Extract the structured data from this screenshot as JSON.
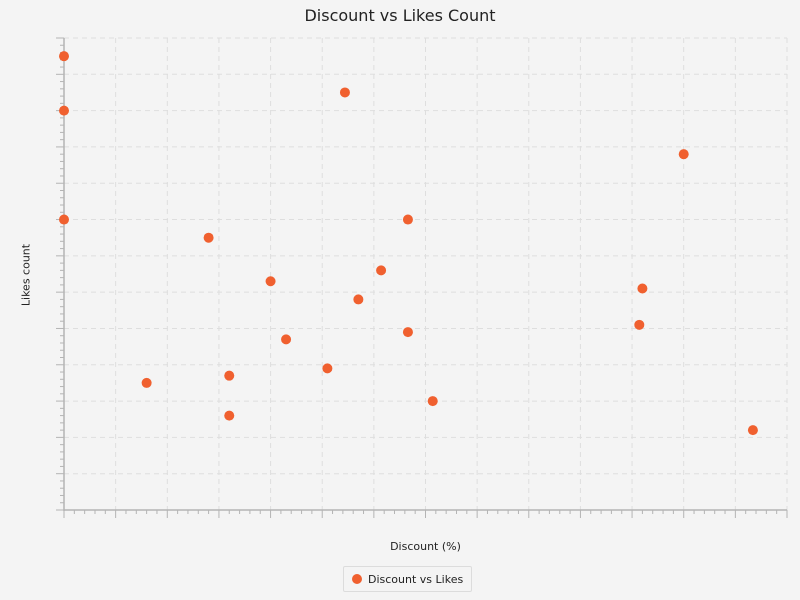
{
  "chart_data": {
    "type": "scatter",
    "title": "Discount vs Likes Count",
    "xlabel": "Discount (%)",
    "ylabel": "Likes count",
    "legend": {
      "placement": "bottom-center",
      "entries": [
        "Discount vs Likes"
      ]
    },
    "grid": true,
    "colors": {
      "series": "#f0602f",
      "grid": "#dedede",
      "axis": "#b4b4b4",
      "background": "#f4f4f4"
    },
    "xlim": [
      0,
      70
    ],
    "ylim": [
      0,
      130
    ],
    "series": [
      {
        "name": "Discount vs Likes",
        "points": [
          {
            "x": 0,
            "y": 125
          },
          {
            "x": 0,
            "y": 110
          },
          {
            "x": 0,
            "y": 80
          },
          {
            "x": 8,
            "y": 35
          },
          {
            "x": 14,
            "y": 75
          },
          {
            "x": 16,
            "y": 37
          },
          {
            "x": 16,
            "y": 26
          },
          {
            "x": 20,
            "y": 63
          },
          {
            "x": 21.5,
            "y": 47
          },
          {
            "x": 25.5,
            "y": 39
          },
          {
            "x": 27.2,
            "y": 115
          },
          {
            "x": 28.5,
            "y": 58
          },
          {
            "x": 30.7,
            "y": 66
          },
          {
            "x": 33.3,
            "y": 80
          },
          {
            "x": 33.3,
            "y": 49
          },
          {
            "x": 35.7,
            "y": 30
          },
          {
            "x": 55.7,
            "y": 51
          },
          {
            "x": 56,
            "y": 61
          },
          {
            "x": 60,
            "y": 98
          },
          {
            "x": 66.7,
            "y": 22
          }
        ]
      }
    ]
  }
}
